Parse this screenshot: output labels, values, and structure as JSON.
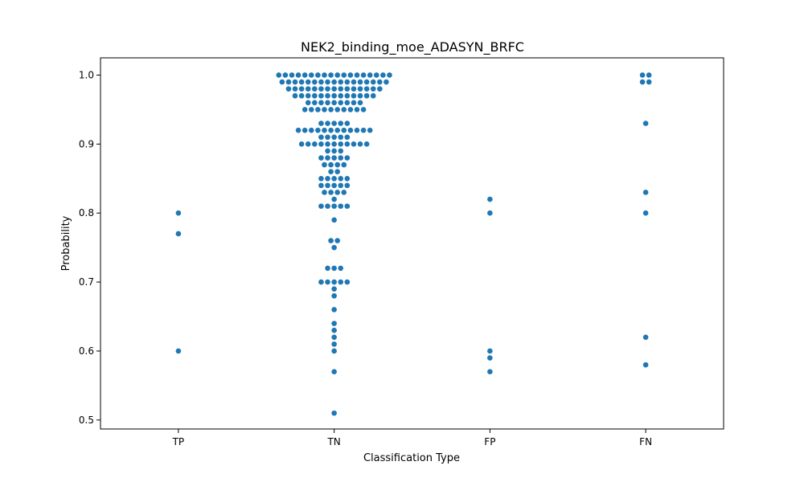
{
  "chart_data": {
    "type": "scatter",
    "subtype": "swarm",
    "title": "NEK2_binding_moe_ADASYN_BRFC",
    "xlabel": "Classification Type",
    "ylabel": "Probability",
    "categories": [
      "TP",
      "TN",
      "FP",
      "FN"
    ],
    "ylim": [
      0.487,
      1.025
    ],
    "yticks": [
      0.5,
      0.6,
      0.7,
      0.8,
      0.9,
      1.0
    ],
    "ytick_labels": [
      "0.5",
      "0.6",
      "0.7",
      "0.8",
      "0.9",
      "1.0"
    ],
    "grid": false,
    "legend": "none",
    "colors": {
      "marker": "#1f77b4",
      "axes": "#000000"
    },
    "series": [
      {
        "category": "TP",
        "points": [
          {
            "y": 0.8,
            "n": 1
          },
          {
            "y": 0.77,
            "n": 1
          },
          {
            "y": 0.6,
            "n": 1
          }
        ]
      },
      {
        "category": "TN",
        "points": [
          {
            "y": 1.0,
            "n": 18
          },
          {
            "y": 0.99,
            "n": 17
          },
          {
            "y": 0.98,
            "n": 15
          },
          {
            "y": 0.97,
            "n": 13
          },
          {
            "y": 0.96,
            "n": 9
          },
          {
            "y": 0.95,
            "n": 10
          },
          {
            "y": 0.93,
            "n": 5
          },
          {
            "y": 0.92,
            "n": 12
          },
          {
            "y": 0.91,
            "n": 5
          },
          {
            "y": 0.9,
            "n": 11
          },
          {
            "y": 0.89,
            "n": 3
          },
          {
            "y": 0.88,
            "n": 5
          },
          {
            "y": 0.87,
            "n": 4
          },
          {
            "y": 0.86,
            "n": 2
          },
          {
            "y": 0.85,
            "n": 5
          },
          {
            "y": 0.84,
            "n": 5
          },
          {
            "y": 0.83,
            "n": 4
          },
          {
            "y": 0.82,
            "n": 1
          },
          {
            "y": 0.81,
            "n": 5
          },
          {
            "y": 0.79,
            "n": 1
          },
          {
            "y": 0.76,
            "n": 2
          },
          {
            "y": 0.75,
            "n": 1
          },
          {
            "y": 0.72,
            "n": 3
          },
          {
            "y": 0.7,
            "n": 5
          },
          {
            "y": 0.69,
            "n": 1
          },
          {
            "y": 0.68,
            "n": 1
          },
          {
            "y": 0.66,
            "n": 1
          },
          {
            "y": 0.64,
            "n": 1
          },
          {
            "y": 0.63,
            "n": 1
          },
          {
            "y": 0.62,
            "n": 1
          },
          {
            "y": 0.61,
            "n": 1
          },
          {
            "y": 0.6,
            "n": 1
          },
          {
            "y": 0.57,
            "n": 1
          },
          {
            "y": 0.51,
            "n": 1
          }
        ]
      },
      {
        "category": "FP",
        "points": [
          {
            "y": 0.82,
            "n": 1
          },
          {
            "y": 0.8,
            "n": 1
          },
          {
            "y": 0.6,
            "n": 1
          },
          {
            "y": 0.59,
            "n": 1
          },
          {
            "y": 0.57,
            "n": 1
          }
        ]
      },
      {
        "category": "FN",
        "points": [
          {
            "y": 1.0,
            "n": 2
          },
          {
            "y": 0.99,
            "n": 2
          },
          {
            "y": 0.93,
            "n": 1
          },
          {
            "y": 0.83,
            "n": 1
          },
          {
            "y": 0.8,
            "n": 1
          },
          {
            "y": 0.62,
            "n": 1
          },
          {
            "y": 0.58,
            "n": 1
          }
        ]
      }
    ]
  }
}
